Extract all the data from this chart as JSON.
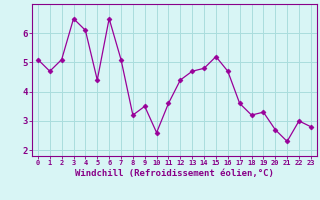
{
  "x": [
    0,
    1,
    2,
    3,
    4,
    5,
    6,
    7,
    8,
    9,
    10,
    11,
    12,
    13,
    14,
    15,
    16,
    17,
    18,
    19,
    20,
    21,
    22,
    23
  ],
  "y": [
    5.1,
    4.7,
    5.1,
    6.5,
    6.1,
    4.4,
    6.5,
    5.1,
    3.2,
    3.5,
    2.6,
    3.6,
    4.4,
    4.7,
    4.8,
    5.2,
    4.7,
    3.6,
    3.2,
    3.3,
    2.7,
    2.3,
    3.0,
    2.8
  ],
  "line_color": "#990099",
  "marker": "D",
  "marker_size": 2.5,
  "bg_color": "#d8f5f5",
  "grid_color": "#aadddd",
  "xlabel": "Windchill (Refroidissement éolien,°C)",
  "xlabel_color": "#880088",
  "ylim": [
    1.8,
    7.0
  ],
  "yticks": [
    2,
    3,
    4,
    5,
    6
  ],
  "tick_label_color": "#880088",
  "axis_color": "#880088",
  "spine_color": "#880088"
}
